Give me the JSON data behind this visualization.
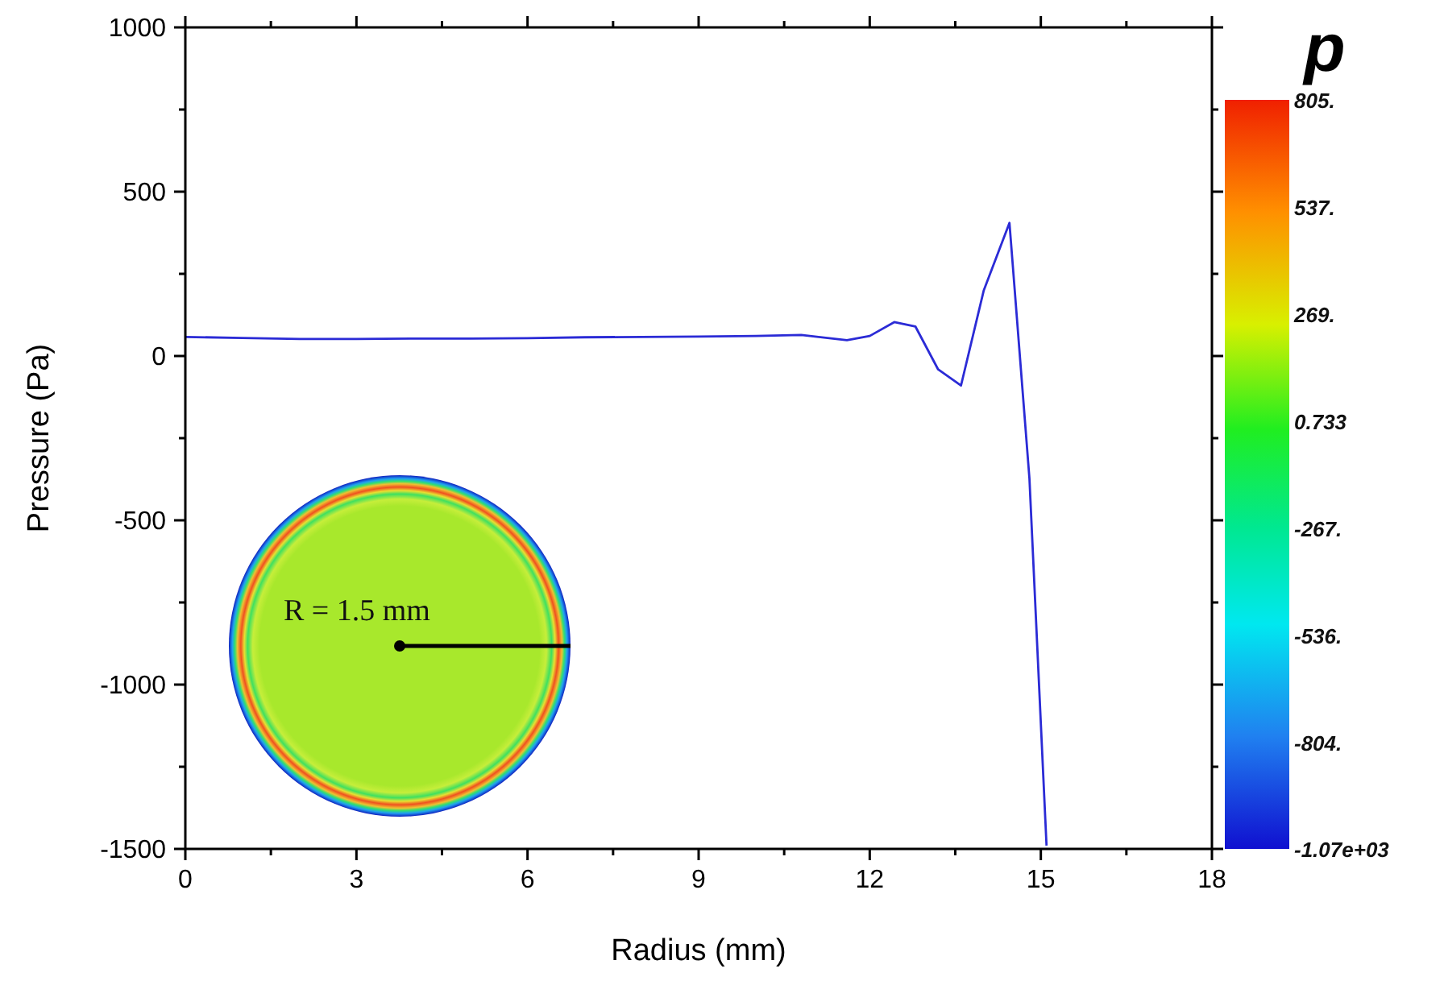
{
  "chart_data": {
    "type": "line",
    "xlabel": "Radius (mm)",
    "ylabel": "Pressure (Pa)",
    "x": [
      0,
      1,
      2,
      3,
      4,
      5,
      6,
      7,
      8,
      9,
      10,
      10.8,
      11.6,
      12.0,
      12.43,
      12.8,
      13.2,
      13.6,
      14.0,
      14.45,
      14.8,
      15.1
    ],
    "series": [
      {
        "color": "#2b2bd6",
        "values": [
          58,
          55,
          52,
          52,
          53,
          53,
          54,
          57,
          58,
          59,
          61,
          64,
          48,
          61,
          103,
          90,
          -41,
          -90,
          200,
          405,
          -372,
          -1490
        ]
      }
    ],
    "xlim": [
      0,
      18
    ],
    "xticks": [
      0,
      {
        "value": 1.5,
        "label": null
      },
      3,
      {
        "value": 4.5,
        "label": null
      },
      6,
      {
        "value": 7.5,
        "label": null
      },
      9,
      {
        "value": 10.5,
        "label": null
      },
      12,
      {
        "value": 13.5,
        "label": null
      },
      15,
      {
        "value": 16.5,
        "label": null
      },
      18
    ],
    "ylim": [
      -1500,
      1000
    ],
    "yticks": [
      -1500,
      {
        "value": -1250,
        "label": null
      },
      -1000,
      {
        "value": -750,
        "label": null
      },
      -500,
      {
        "value": -250,
        "label": null
      },
      0,
      {
        "value": 250,
        "label": null
      },
      500,
      {
        "value": 750,
        "label": null
      },
      1000
    ],
    "grid": false,
    "marker": "none",
    "line_style": "solid",
    "clabel": "p",
    "clim": [
      -1070,
      805
    ],
    "cticks": [
      {
        "value": 805,
        "label": "805."
      },
      {
        "value": 537,
        "label": "537."
      },
      {
        "value": 269,
        "label": "269."
      },
      {
        "value": 0.733,
        "label": "0.733"
      },
      {
        "value": -267,
        "label": "-267."
      },
      {
        "value": -536,
        "label": "-536."
      },
      {
        "value": -804,
        "label": "-804."
      },
      {
        "value": -1070,
        "label": "-1.07e+03"
      }
    ],
    "annotations": [
      "R = 1.5 mm"
    ]
  }
}
